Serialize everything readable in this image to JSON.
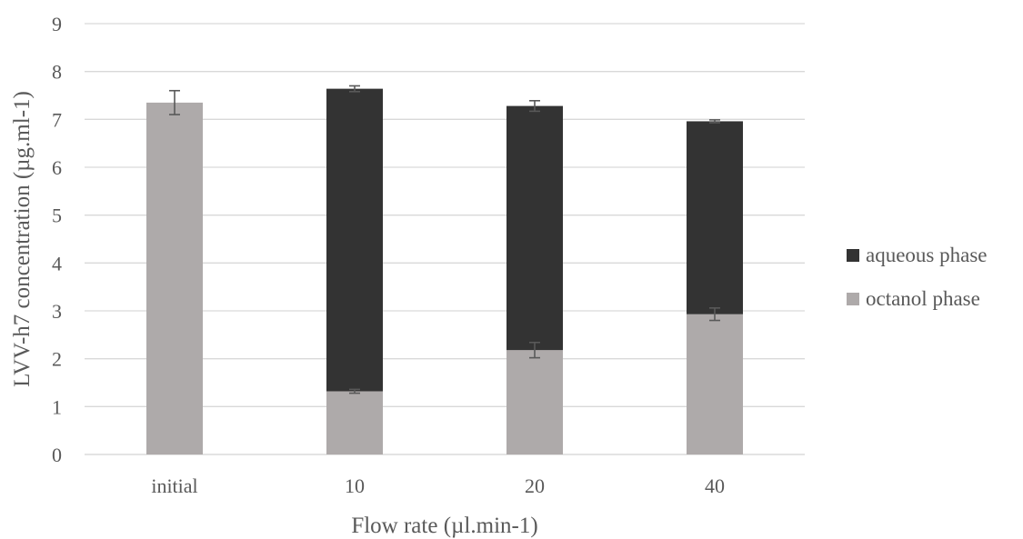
{
  "chart_data": {
    "type": "bar",
    "stacked": true,
    "xlabel": "Flow rate (µl.min-1)",
    "ylabel": "LVV-h7 concentration (µg.ml-1)",
    "ylim": [
      0,
      9
    ],
    "yticks": [
      0,
      1,
      2,
      3,
      4,
      5,
      6,
      7,
      8,
      9
    ],
    "grid": "horizontal",
    "legend_position": "right",
    "categories": [
      "initial",
      "10",
      "20",
      "40"
    ],
    "series": [
      {
        "name": "octanol phase",
        "color": "#aeaaaa",
        "values": [
          7.35,
          1.32,
          2.18,
          2.93
        ],
        "error": [
          0.25,
          0.04,
          0.16,
          0.13
        ]
      },
      {
        "name": "aqueous phase",
        "color": "#333333",
        "values": [
          0,
          6.32,
          5.1,
          4.03
        ],
        "error": [
          0,
          0.06,
          0.11,
          0.03
        ]
      }
    ],
    "legend_order": [
      "aqueous phase",
      "octanol phase"
    ]
  }
}
